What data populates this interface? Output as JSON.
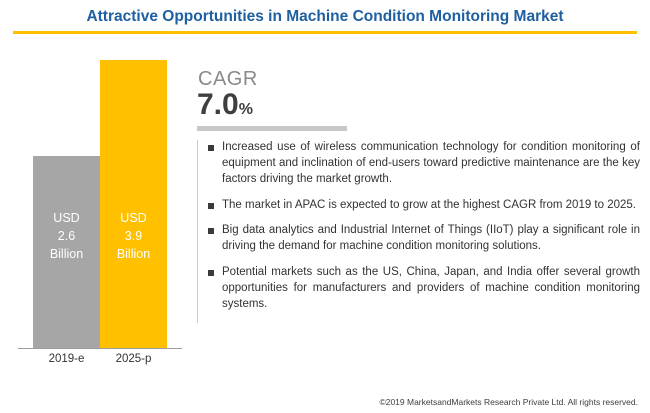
{
  "title": "Attractive Opportunities in Machine Condition Monitoring Market",
  "accent_colors": {
    "title_blue": "#1e5fa0",
    "gold": "#FFC000",
    "gray_bar": "#A6A6A6",
    "rule_gray": "#C8C8C8"
  },
  "chart_data": {
    "type": "bar",
    "title": "Attractive Opportunities in Machine Condition Monitoring Market",
    "categories": [
      "2019-e",
      "2025-p"
    ],
    "values": [
      2.6,
      3.9
    ],
    "unit": "USD Billion",
    "value_prefix": "USD",
    "value_suffix": "Billion",
    "colors": [
      "#A6A6A6",
      "#FFC000"
    ],
    "ylim": [
      0,
      3.9
    ],
    "grid": false,
    "legend": "none",
    "cagr": "7.0%"
  },
  "cagr": {
    "label": "CAGR",
    "value": "7.0",
    "unit": "%"
  },
  "bullets": [
    "Increased use of wireless communication technology for condition monitoring of equipment and inclination of end-users toward predictive maintenance are the key factors driving the market growth.",
    "The market in APAC is expected to grow at the highest CAGR from 2019 to 2025.",
    "Big data analytics and Industrial Internet of Things (IIoT) play a significant role in driving the demand for machine condition monitoring solutions.",
    "Potential markets such as the US, China, Japan, and India offer several growth opportunities for manufacturers and providers of machine condition monitoring systems."
  ],
  "footer": "©2019 MarketsandMarkets Research Private Ltd. All rights reserved."
}
